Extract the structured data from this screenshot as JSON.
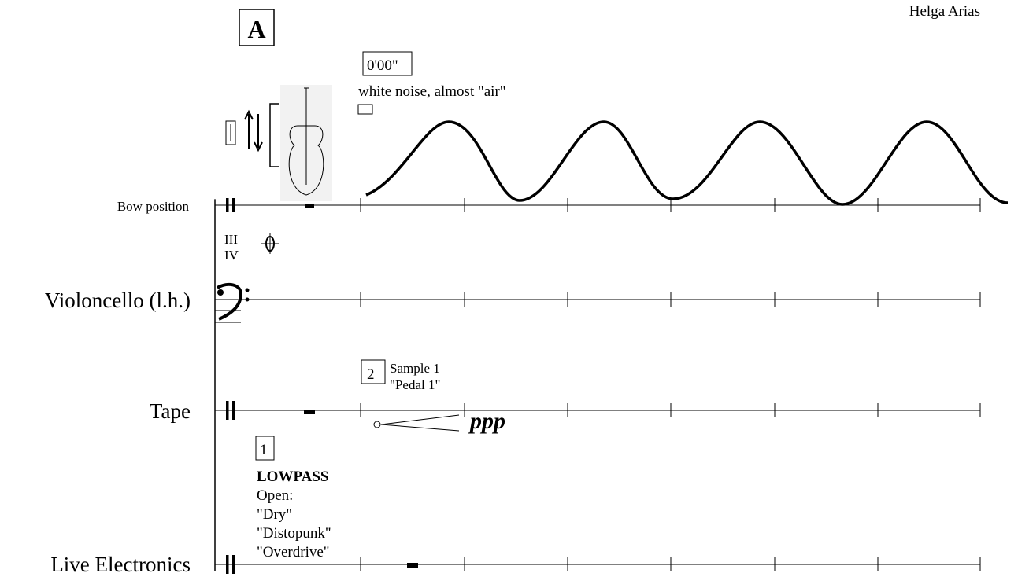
{
  "header": {
    "composer": "Helga Arias",
    "rehearsal_mark": "A"
  },
  "staves": [
    {
      "label": "Bow position"
    },
    {
      "label": "Violoncello (l.h.)"
    },
    {
      "label": "Tape"
    },
    {
      "label": "Live Electronics"
    }
  ],
  "annotations": {
    "time": "0'00\"",
    "bow_note": "white noise, almost \"air\"",
    "strings": [
      "III",
      "IV"
    ],
    "tape_cue": {
      "number": "2",
      "lines": [
        "Sample 1",
        "\"Pedal 1\""
      ]
    },
    "dynamic": "ppp",
    "electronics_cue": {
      "number": "1",
      "title": "LOWPASS",
      "lines": [
        "Open:",
        "\"Dry\"",
        "\"Distopunk\"",
        "\"Overdrive\""
      ]
    }
  }
}
